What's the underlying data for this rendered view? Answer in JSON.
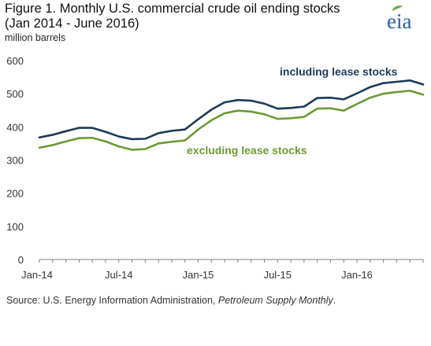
{
  "header": {
    "title_line1": "Figure 1. Monthly U.S. commercial crude oil ending stocks",
    "title_line2": "(Jan 2014 - June  2016)",
    "units": "million barrels",
    "logo_text": "eia",
    "logo_color": "#2a5caa",
    "logo_leaf_color": "#6ba539"
  },
  "footer": {
    "source_label": "Source:  U.S. Energy Information Administration, ",
    "source_publication": "Petroleum Supply Monthly",
    "source_end": "."
  },
  "chart_data": {
    "type": "line",
    "title": "Figure 1. Monthly U.S. commercial crude oil ending stocks (Jan 2014 - June  2016)",
    "ylabel": "million barrels",
    "xlabel": "",
    "ylim": [
      0,
      600
    ],
    "yticks": [
      0,
      100,
      200,
      300,
      400,
      500,
      600
    ],
    "grid": false,
    "x": [
      "Jan-14",
      "Feb-14",
      "Mar-14",
      "Apr-14",
      "May-14",
      "Jun-14",
      "Jul-14",
      "Aug-14",
      "Sep-14",
      "Oct-14",
      "Nov-14",
      "Dec-14",
      "Jan-15",
      "Feb-15",
      "Mar-15",
      "Apr-15",
      "May-15",
      "Jun-15",
      "Jul-15",
      "Aug-15",
      "Sep-15",
      "Oct-15",
      "Nov-15",
      "Dec-15",
      "Jan-16",
      "Feb-16",
      "Mar-16",
      "Apr-16",
      "May-16",
      "Jun-16"
    ],
    "xtick_labels": [
      "Jan-14",
      "Jul-14",
      "Jan-15",
      "Jul-15",
      "Jan-16"
    ],
    "xtick_indices": [
      0,
      6,
      12,
      18,
      24
    ],
    "series": [
      {
        "name": "including lease stocks",
        "color": "#1b3a57",
        "values": [
          368,
          376,
          387,
          397,
          397,
          385,
          371,
          363,
          364,
          381,
          388,
          392,
          423,
          452,
          474,
          481,
          479,
          470,
          455,
          457,
          461,
          487,
          488,
          483,
          501,
          520,
          532,
          536,
          540,
          528
        ]
      },
      {
        "name": "excluding lease stocks",
        "color": "#6b9a35",
        "values": [
          337,
          345,
          356,
          366,
          367,
          356,
          341,
          331,
          333,
          350,
          355,
          359,
          392,
          420,
          441,
          449,
          446,
          438,
          424,
          426,
          430,
          455,
          456,
          449,
          469,
          488,
          500,
          505,
          509,
          497
        ]
      }
    ]
  }
}
